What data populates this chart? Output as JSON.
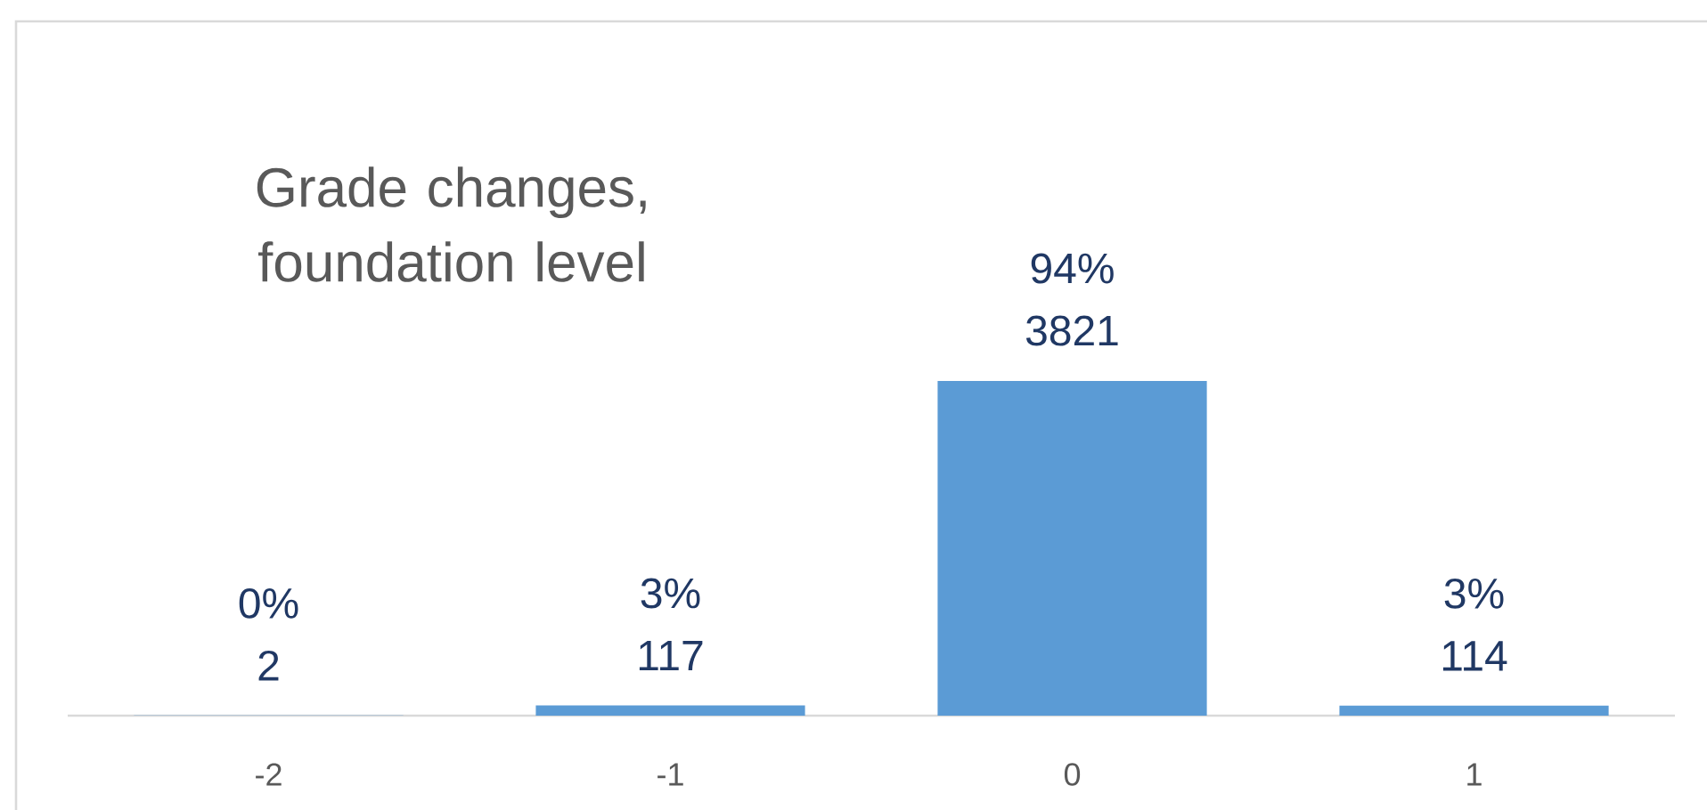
{
  "chart_data": {
    "type": "bar",
    "title": "Grade changes, foundation level",
    "categories": [
      "-2",
      "-1",
      "0",
      "1"
    ],
    "values": [
      2,
      117,
      3821,
      114
    ],
    "color": "#5b9bd5",
    "tick_labels": "x",
    "value_labels": [
      "0% 2",
      "3% 117",
      "94% 3821",
      "3% 114"
    ]
  }
}
